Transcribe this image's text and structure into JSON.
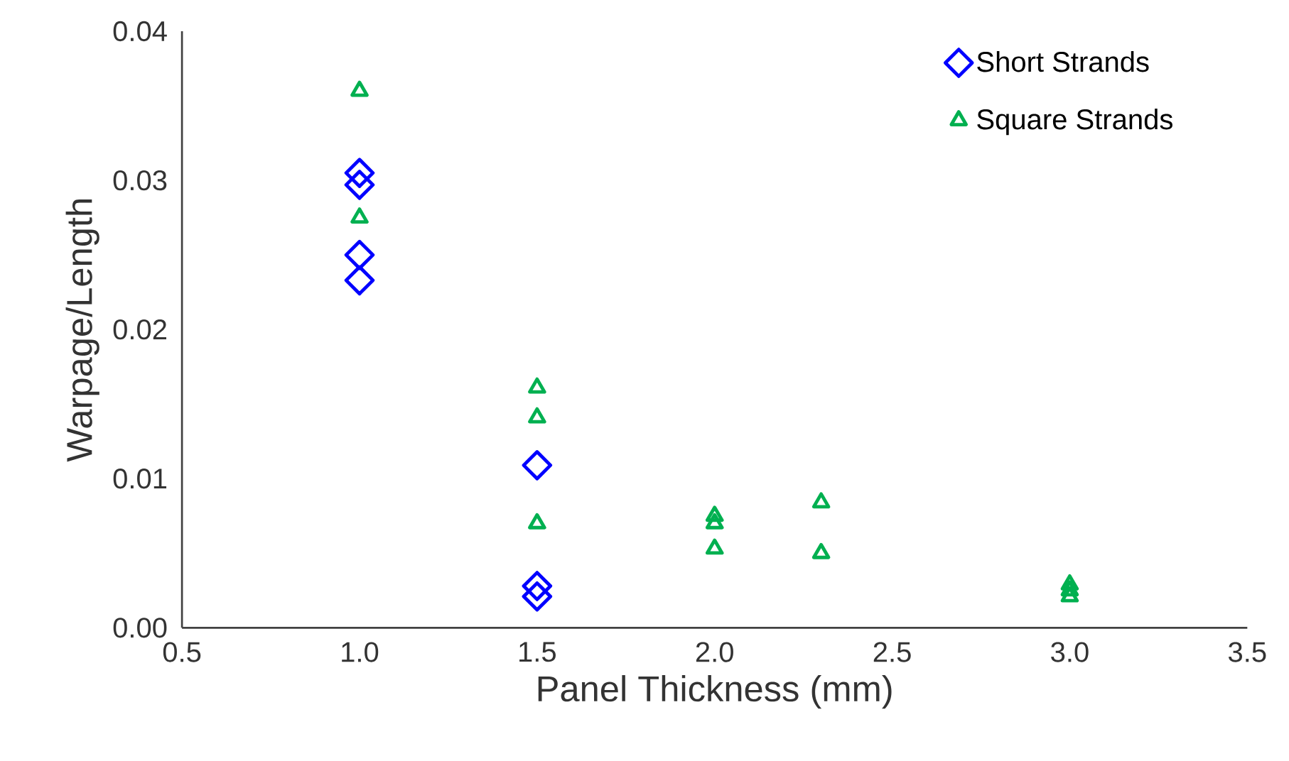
{
  "chart_data": {
    "type": "scatter",
    "xlabel": "Panel Thickness (mm)",
    "ylabel": "Warpage/Length",
    "xlim": [
      0.5,
      3.5
    ],
    "xticks": [
      {
        "value": 0.5,
        "label": "0.5"
      },
      {
        "value": 1,
        "label": "1.0"
      },
      {
        "value": 1.5,
        "label": "1.5"
      },
      {
        "value": 2,
        "label": "2.0"
      },
      {
        "value": 2.5,
        "label": "2.5"
      },
      {
        "value": 3,
        "label": "3.0"
      },
      {
        "value": 3.5,
        "label": "3.5"
      }
    ],
    "ylim": [
      0,
      0.04
    ],
    "yticks": [
      {
        "value": 0,
        "label": "0.00"
      },
      {
        "value": 0.01,
        "label": "0.01"
      },
      {
        "value": 0.02,
        "label": "0.02"
      },
      {
        "value": 0.03,
        "label": "0.03"
      },
      {
        "value": 0.04,
        "label": "0.04"
      }
    ],
    "grid": false,
    "legend": "top right",
    "series": [
      {
        "name": "Short Strands",
        "color": "#0000ff",
        "marker": "diamond",
        "x": [
          1,
          1,
          1,
          1,
          1.5,
          1.5,
          1.5
        ],
        "values": [
          0.0305,
          0.0297,
          0.025,
          0.0233,
          0.0109,
          0.0028,
          0.0021
        ]
      },
      {
        "name": "Square Strands",
        "color": "#00b050",
        "marker": "triangle",
        "x": [
          1,
          1,
          1.5,
          1.5,
          1.5,
          2,
          2,
          2,
          2.3,
          2.3,
          3,
          3,
          3
        ],
        "values": [
          0.036,
          0.0275,
          0.0161,
          0.0141,
          0.007,
          0.0075,
          0.007,
          0.0053,
          0.0084,
          0.005,
          0.0029,
          0.0025,
          0.0021
        ]
      }
    ]
  }
}
